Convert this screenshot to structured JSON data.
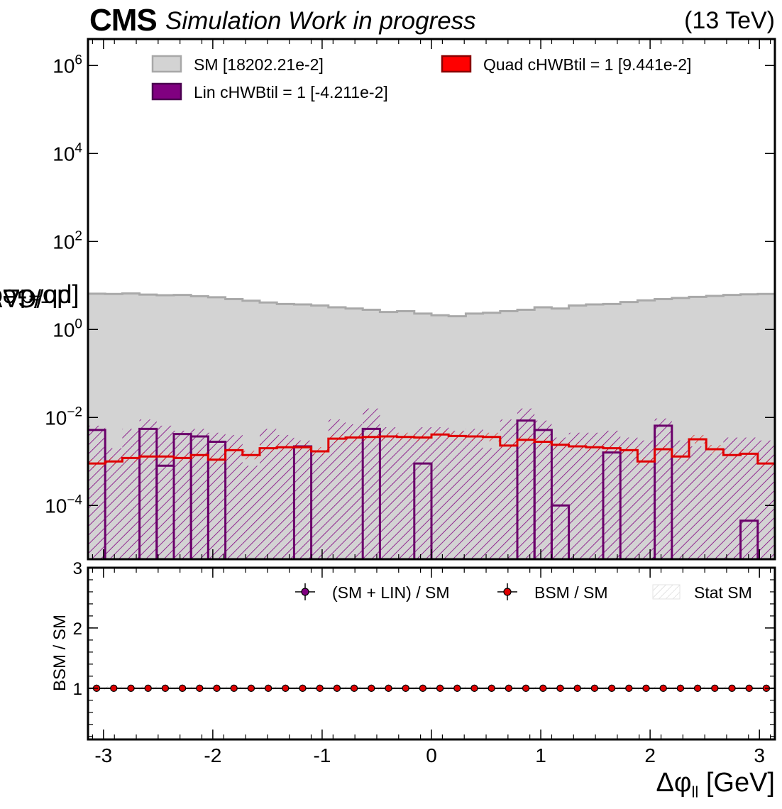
{
  "header": {
    "experiment": "CMS",
    "subtitle": "Simulation Work in progress",
    "energy": "(13 TeV)"
  },
  "chart_data": {
    "type": "bar",
    "top_panel": {
      "ylabel": "dσ/dΔφₗₗ [pb/GeV]",
      "ylabel_text": "dσ/dΔφ",
      "ylabel_sub": "ll",
      "ylabel_unit": " [pb/GeV]",
      "yscale": "log",
      "ylim": [
        6e-06,
        4000000
      ],
      "yticks": [
        {
          "value": 0.0001,
          "base": "10",
          "exp": "−4"
        },
        {
          "value": 0.01,
          "base": "10",
          "exp": "−2"
        },
        {
          "value": 1,
          "base": "10",
          "exp": "0"
        },
        {
          "value": 100,
          "base": "10",
          "exp": "2"
        },
        {
          "value": 10000,
          "base": "10",
          "exp": "4"
        },
        {
          "value": 1000000,
          "base": "10",
          "exp": "6"
        }
      ],
      "legend": [
        {
          "label": "SM [18202.21e-2]",
          "color": "#d3d3d3",
          "edge": "#a8a8a8"
        },
        {
          "label": "Quad cHWBtil = 1 [9.441e-2]",
          "color": "#ff0000",
          "edge": "#8b0000"
        },
        {
          "label": "Lin cHWBtil = 1 [-4.211e-2]",
          "color": "#800080",
          "edge": "#4b0050"
        }
      ]
    },
    "bottom_panel": {
      "ylabel": "BSM / SM",
      "ylim": [
        0.15,
        3
      ],
      "yticks": [
        "1",
        "2",
        "3"
      ],
      "legend": [
        "(SM + LIN) / SM",
        "BSM / SM",
        "Stat SM"
      ]
    },
    "xlabel": "Δφ",
    "xlabel_sub": "ll",
    "xlabel_unit": " [GeV]",
    "xlim": [
      -3.1416,
      3.1416
    ],
    "xticks": [
      "-3",
      "-2",
      "-1",
      "0",
      "1",
      "2",
      "3"
    ],
    "n_bins": 40,
    "series": [
      {
        "name": "SM [18202.21e-2]",
        "values": [
          6.5,
          6.4,
          6.6,
          6.2,
          6.0,
          6.1,
          5.7,
          5.4,
          4.9,
          4.5,
          4.1,
          3.8,
          3.7,
          3.5,
          3.2,
          3.0,
          2.8,
          2.5,
          2.6,
          2.3,
          2.1,
          2.0,
          2.3,
          2.4,
          2.6,
          2.8,
          3.2,
          3.0,
          3.5,
          3.7,
          3.8,
          4.2,
          4.6,
          4.9,
          5.2,
          5.5,
          5.8,
          6.1,
          6.3,
          6.4
        ]
      },
      {
        "name": "Quad cHWBtil = 1 [9.441e-2]",
        "values": [
          0.0009,
          0.001,
          0.0012,
          0.0013,
          0.0013,
          0.0012,
          0.0014,
          0.0011,
          0.0018,
          0.0014,
          0.002,
          0.0021,
          0.0021,
          0.0017,
          0.0033,
          0.0035,
          0.0036,
          0.0037,
          0.0036,
          0.0035,
          0.0041,
          0.0038,
          0.0037,
          0.0036,
          0.0023,
          0.0031,
          0.0028,
          0.0024,
          0.0022,
          0.0021,
          0.002,
          0.0018,
          0.001,
          0.0019,
          0.0013,
          0.0032,
          0.0019,
          0.0014,
          0.0015,
          0.0009
        ]
      },
      {
        "name": "Lin cHWBtil = 1 [-4.211e-2]",
        "values": [
          0.0052,
          -1,
          -1,
          0.0055,
          0.0008,
          0.0042,
          0.0037,
          0.0028,
          -1,
          -1,
          -1,
          -1,
          0.0022,
          -1,
          -1,
          -1,
          0.0055,
          -1,
          -1,
          0.0009,
          -1,
          -1,
          -1,
          -1,
          -1,
          0.0085,
          0.0052,
          0.0001,
          -1,
          1.4e-06,
          0.0016,
          -1,
          -1,
          0.0065,
          -1,
          -1,
          -1,
          -1,
          4.5e-05,
          -1
        ]
      },
      {
        "name": "(SM + LIN) / SM",
        "values": [
          1,
          1,
          1,
          1,
          1,
          1,
          1,
          1,
          1,
          1,
          1,
          1,
          1,
          1,
          1,
          1,
          1,
          1,
          1,
          1,
          1,
          1,
          1,
          1,
          1,
          1,
          1,
          1,
          1,
          1,
          1,
          1,
          1,
          1,
          1,
          1,
          1,
          1,
          1,
          1
        ]
      },
      {
        "name": "BSM / SM",
        "values": [
          1,
          1,
          1,
          1,
          1,
          1,
          1,
          1,
          1,
          1,
          1,
          1,
          1,
          1,
          1,
          1,
          1,
          1,
          1,
          1,
          1,
          1,
          1,
          1,
          1,
          1,
          1,
          1,
          1,
          1,
          1,
          1,
          1,
          1,
          1,
          1,
          1,
          1,
          1,
          1
        ]
      }
    ],
    "lin_uncertainty_high": [
      0.0065,
      0.002,
      0.0055,
      0.009,
      0.0065,
      0.005,
      0.0055,
      0.0045,
      0.004,
      0.0008,
      0.0055,
      0.004,
      0.003,
      0.0015,
      0.009,
      0.007,
      0.016,
      0.006,
      0.004,
      0.006,
      0.006,
      0.005,
      0.0055,
      0.002,
      0.009,
      0.016,
      0.0085,
      0.0035,
      0.0045,
      0.0045,
      0.005,
      0.0035,
      0.003,
      0.0095,
      0.003,
      0.0022,
      0.0015,
      0.0035,
      0.0035,
      0.003
    ],
    "colors": {
      "sm_fill": "#d3d3d3",
      "sm_edge": "#a9a9a9",
      "lin": "#800080",
      "lin_edge": "#6a006a",
      "quad": "#e00000"
    }
  }
}
